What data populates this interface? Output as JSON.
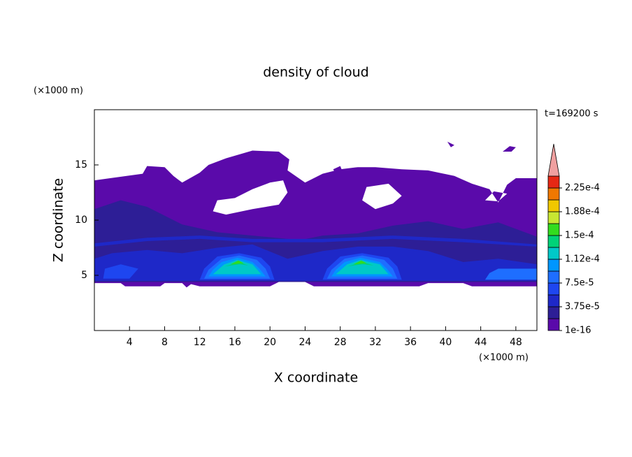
{
  "chart_data": {
    "type": "contour",
    "title": "density of cloud",
    "x_label": "X coordinate",
    "y_label": "Z coordinate",
    "x_unit": "(×1000 m)",
    "y_unit": "(×1000 m)",
    "annotation": "t=169200 s",
    "xlim": [
      0,
      50.4
    ],
    "ylim": [
      0,
      20
    ],
    "xticks": [
      4,
      8,
      12,
      16,
      20,
      24,
      28,
      32,
      36,
      40,
      44,
      48
    ],
    "yticks": [
      5,
      10,
      15
    ],
    "colorbar": {
      "clim": [
        1e-16,
        0.00024375
      ],
      "colors": [
        "#5a0aaa",
        "#2d1e96",
        "#1e28c8",
        "#1e46f0",
        "#1e6eff",
        "#0096ff",
        "#00c8c8",
        "#00d278",
        "#32dc1e",
        "#c8e632",
        "#f0c800",
        "#f07800",
        "#e62814"
      ],
      "extend_color": "#f0a0a0",
      "ticks": [
        1e-16,
        {
          "value": 3.75e-05,
          "label": "3.75e-5"
        },
        {
          "value": 7.5e-05,
          "label": "7.5e-5"
        },
        {
          "value": 0.0001125,
          "label": "1.12e-4"
        },
        {
          "value": 0.00015,
          "label": "1.5e-4"
        },
        {
          "value": 0.0001875,
          "label": "1.88e-4"
        },
        {
          "value": 0.000225,
          "label": "2.25e-4"
        }
      ]
    },
    "regions": [
      {
        "level": 1e-16,
        "rings": [
          [
            [
              0,
              4.3
            ],
            [
              3,
              4.3
            ],
            [
              3.5,
              4.0
            ],
            [
              7.5,
              4.0
            ],
            [
              8,
              4.3
            ],
            [
              10,
              4.3
            ],
            [
              10.5,
              3.9
            ],
            [
              11,
              4.2
            ],
            [
              12,
              4.0
            ],
            [
              20,
              4.0
            ],
            [
              21,
              4.4
            ],
            [
              24,
              4.4
            ],
            [
              25,
              4.0
            ],
            [
              37,
              4.0
            ],
            [
              38,
              4.3
            ],
            [
              42,
              4.3
            ],
            [
              43,
              4.0
            ],
            [
              50.4,
              4.0
            ],
            [
              50.4,
              13.8
            ],
            [
              48,
              13.8
            ],
            [
              47,
              13.2
            ],
            [
              46,
              11.6
            ],
            [
              45,
              12.8
            ],
            [
              43,
              13.3
            ],
            [
              41,
              14.0
            ],
            [
              38,
              14.5
            ],
            [
              35,
              14.6
            ],
            [
              32,
              14.8
            ],
            [
              30,
              14.8
            ],
            [
              28,
              14.6
            ],
            [
              26,
              14.2
            ],
            [
              24,
              13.4
            ],
            [
              22,
              14.5
            ],
            [
              22.2,
              15.5
            ],
            [
              21,
              16.2
            ],
            [
              18,
              16.3
            ],
            [
              15,
              15.6
            ],
            [
              13,
              15.0
            ],
            [
              12,
              14.3
            ],
            [
              10,
              13.4
            ],
            [
              9,
              14.0
            ],
            [
              8,
              14.8
            ],
            [
              6,
              14.9
            ],
            [
              5.5,
              14.2
            ],
            [
              0,
              13.6
            ]
          ],
          [
            [
              15,
              10.5
            ],
            [
              18,
              11.0
            ],
            [
              21,
              11.4
            ],
            [
              22,
              12.5
            ],
            [
              21.5,
              13.6
            ],
            [
              20,
              13.4
            ],
            [
              18,
              12.8
            ],
            [
              16,
              12.0
            ],
            [
              14,
              11.8
            ],
            [
              13.5,
              10.8
            ]
          ],
          [
            [
              32,
              11
            ],
            [
              34,
              11.5
            ],
            [
              35,
              12.2
            ],
            [
              33.5,
              13.3
            ],
            [
              31,
              13.0
            ],
            [
              30.5,
              11.8
            ]
          ],
          [
            [
              44.5,
              11.8
            ],
            [
              46,
              11.7
            ],
            [
              47,
              12.4
            ],
            [
              45.5,
              12.6
            ]
          ]
        ]
      },
      {
        "level": 1e-16,
        "rings": [
          [
            [
              40.2,
              17.1
            ],
            [
              41,
              16.8
            ],
            [
              40.6,
              16.6
            ]
          ]
        ]
      },
      {
        "level": 1e-16,
        "rings": [
          [
            [
              46.5,
              16.2
            ],
            [
              47.3,
              16.7
            ],
            [
              48,
              16.6
            ],
            [
              47.5,
              16.2
            ]
          ]
        ]
      },
      {
        "level": 1e-16,
        "rings": [
          [
            [
              27.2,
              14.6
            ],
            [
              28,
              14.9
            ],
            [
              28.2,
              14.5
            ],
            [
              27.4,
              14.3
            ]
          ]
        ]
      },
      {
        "level": 1.875e-05,
        "rings": [
          [
            [
              0,
              4.4
            ],
            [
              50.4,
              4.4
            ],
            [
              50.4,
              8.5
            ],
            [
              46,
              9.8
            ],
            [
              42,
              9.2
            ],
            [
              38,
              9.9
            ],
            [
              34,
              9.5
            ],
            [
              30,
              8.8
            ],
            [
              26,
              8.6
            ],
            [
              23.5,
              8.2
            ],
            [
              22,
              8.3
            ],
            [
              18,
              8.6
            ],
            [
              14,
              8.9
            ],
            [
              10,
              9.6
            ],
            [
              6,
              11.2
            ],
            [
              3,
              11.8
            ],
            [
              0,
              11.0
            ]
          ]
        ]
      },
      {
        "level": 1e-16,
        "rings": [
          [
            [
              20,
              8.8
            ],
            [
              22,
              8.6
            ],
            [
              23,
              9.2
            ],
            [
              22,
              9.8
            ],
            [
              20.5,
              9.6
            ]
          ]
        ]
      },
      {
        "level": 3.75e-05,
        "rings": [
          [
            [
              0,
              4.5
            ],
            [
              50.4,
              4.5
            ],
            [
              50.4,
              6.0
            ],
            [
              46,
              6.5
            ],
            [
              42,
              6.2
            ],
            [
              38,
              7.2
            ],
            [
              34,
              7.6
            ],
            [
              30,
              7.6
            ],
            [
              26,
              7.2
            ],
            [
              22,
              6.5
            ],
            [
              18,
              7.8
            ],
            [
              14,
              7.5
            ],
            [
              10,
              7.0
            ],
            [
              6,
              7.3
            ],
            [
              2,
              7.0
            ],
            [
              0,
              6.5
            ]
          ]
        ]
      },
      {
        "level": 3.75e-05,
        "rings": [
          [
            [
              0,
              7.6
            ],
            [
              6,
              8.1
            ],
            [
              12,
              8.3
            ],
            [
              18,
              8.0
            ],
            [
              26,
              8.0
            ],
            [
              34,
              8.3
            ],
            [
              42,
              8.0
            ],
            [
              50.4,
              7.6
            ],
            [
              50.4,
              7.8
            ],
            [
              42,
              8.3
            ],
            [
              34,
              8.6
            ],
            [
              26,
              8.3
            ],
            [
              18,
              8.3
            ],
            [
              12,
              8.6
            ],
            [
              6,
              8.4
            ],
            [
              0,
              7.9
            ]
          ]
        ]
      },
      {
        "level": 5.625e-05,
        "rings": [
          [
            [
              12,
              4.6
            ],
            [
              20.5,
              4.6
            ],
            [
              20,
              5.8
            ],
            [
              19,
              6.6
            ],
            [
              16.5,
              7.0
            ],
            [
              14,
              6.7
            ],
            [
              12.5,
              5.6
            ]
          ]
        ]
      },
      {
        "level": 7.5e-05,
        "rings": [
          [
            [
              12.5,
              4.7
            ],
            [
              20,
              4.7
            ],
            [
              19.5,
              5.6
            ],
            [
              18.5,
              6.4
            ],
            [
              16.5,
              6.8
            ],
            [
              14.5,
              6.5
            ],
            [
              13,
              5.5
            ]
          ]
        ]
      },
      {
        "level": 9.375e-05,
        "rings": [
          [
            [
              13,
              4.9
            ],
            [
              19.5,
              4.9
            ],
            [
              18.8,
              5.6
            ],
            [
              18,
              6.2
            ],
            [
              16.3,
              6.6
            ],
            [
              14.5,
              6.2
            ],
            [
              13.5,
              5.5
            ]
          ]
        ]
      },
      {
        "level": 0.0001125,
        "rings": [
          [
            [
              13.5,
              5.1
            ],
            [
              19,
              5.1
            ],
            [
              18,
              6.0
            ],
            [
              16.3,
              6.4
            ],
            [
              14.8,
              6.0
            ]
          ]
        ]
      },
      {
        "level": 0.00013125,
        "rings": [
          [
            [
              14.8,
              5.8
            ],
            [
              16.5,
              6.2
            ],
            [
              17.5,
              5.9
            ],
            [
              16.5,
              6.0
            ]
          ]
        ]
      },
      {
        "level": 0.00015,
        "rings": [
          [
            [
              15.5,
              6.0
            ],
            [
              16.4,
              6.35
            ],
            [
              17,
              6.1
            ]
          ]
        ]
      },
      {
        "level": 5.625e-05,
        "rings": [
          [
            [
              26,
              4.6
            ],
            [
              35,
              4.6
            ],
            [
              34.5,
              5.8
            ],
            [
              33.5,
              6.6
            ],
            [
              30.5,
              7.0
            ],
            [
              28,
              6.7
            ],
            [
              26.5,
              5.6
            ]
          ]
        ]
      },
      {
        "level": 7.5e-05,
        "rings": [
          [
            [
              26.5,
              4.7
            ],
            [
              34.5,
              4.7
            ],
            [
              34,
              5.6
            ],
            [
              33,
              6.4
            ],
            [
              30.5,
              6.8
            ],
            [
              28.5,
              6.5
            ],
            [
              27,
              5.5
            ]
          ]
        ]
      },
      {
        "level": 9.375e-05,
        "rings": [
          [
            [
              27,
              4.9
            ],
            [
              34,
              4.9
            ],
            [
              33.3,
              5.6
            ],
            [
              32.5,
              6.2
            ],
            [
              30.3,
              6.6
            ],
            [
              28.5,
              6.2
            ],
            [
              27.5,
              5.5
            ]
          ]
        ]
      },
      {
        "level": 0.0001125,
        "rings": [
          [
            [
              27.5,
              5.1
            ],
            [
              33.5,
              5.1
            ],
            [
              32.5,
              6.0
            ],
            [
              30.3,
              6.4
            ],
            [
              28.8,
              6.0
            ]
          ]
        ]
      },
      {
        "level": 0.00013125,
        "rings": [
          [
            [
              28.8,
              5.8
            ],
            [
              30.5,
              6.2
            ],
            [
              31.8,
              5.9
            ],
            [
              30.5,
              6.0
            ]
          ]
        ]
      },
      {
        "level": 0.00015,
        "rings": [
          [
            [
              29.5,
              6.0
            ],
            [
              30.4,
              6.35
            ],
            [
              31,
              6.1
            ]
          ]
        ]
      },
      {
        "level": 7.5e-05,
        "rings": [
          [
            [
              44.5,
              4.6
            ],
            [
              50.4,
              4.6
            ],
            [
              50.4,
              5.6
            ],
            [
              46,
              5.6
            ],
            [
              45,
              5.2
            ]
          ]
        ]
      },
      {
        "level": 5.625e-05,
        "rings": [
          [
            [
              1,
              4.7
            ],
            [
              4,
              4.7
            ],
            [
              5,
              5.6
            ],
            [
              3,
              6.0
            ],
            [
              1.2,
              5.6
            ]
          ]
        ]
      }
    ]
  }
}
